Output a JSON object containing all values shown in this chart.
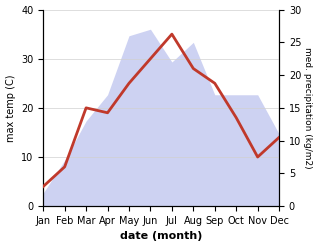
{
  "months": [
    "Jan",
    "Feb",
    "Mar",
    "Apr",
    "May",
    "Jun",
    "Jul",
    "Aug",
    "Sep",
    "Oct",
    "Nov",
    "Dec"
  ],
  "temperature": [
    4,
    8,
    20,
    19,
    25,
    30,
    35,
    28,
    25,
    18,
    10,
    14
  ],
  "precipitation": [
    2,
    7,
    13,
    17,
    26,
    27,
    22,
    25,
    17,
    17,
    17,
    11
  ],
  "temp_color": "#c0392b",
  "precip_color_fill": "#c5caf0",
  "temp_ylim": [
    0,
    40
  ],
  "precip_ylim": [
    0,
    30
  ],
  "xlabel": "date (month)",
  "ylabel_left": "max temp (C)",
  "ylabel_right": "med. precipitation (kg/m2)",
  "bg_color": "#ffffff",
  "grid_color": "#d0d0d0",
  "temp_linewidth": 2.0
}
